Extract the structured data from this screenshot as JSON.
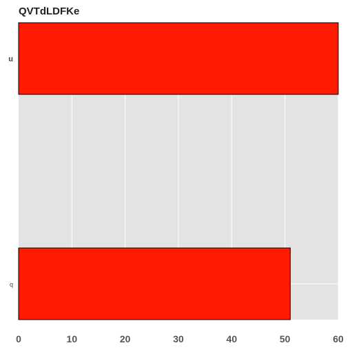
{
  "chart_data": {
    "type": "bar",
    "orientation": "horizontal",
    "title": "QVTdLDFKe",
    "categories": [
      "u",
      "q"
    ],
    "values": [
      60,
      51
    ],
    "xlim": [
      0,
      60
    ],
    "xticks": [
      0,
      10,
      20,
      30,
      40,
      50,
      60
    ],
    "xlabel": "",
    "ylabel": "",
    "grid": true,
    "legend": "none",
    "colors": {
      "bar": "#ff1a00",
      "plot_bg": "#e3e3e3",
      "grid": "#ffffff",
      "edge": "#000000"
    }
  }
}
